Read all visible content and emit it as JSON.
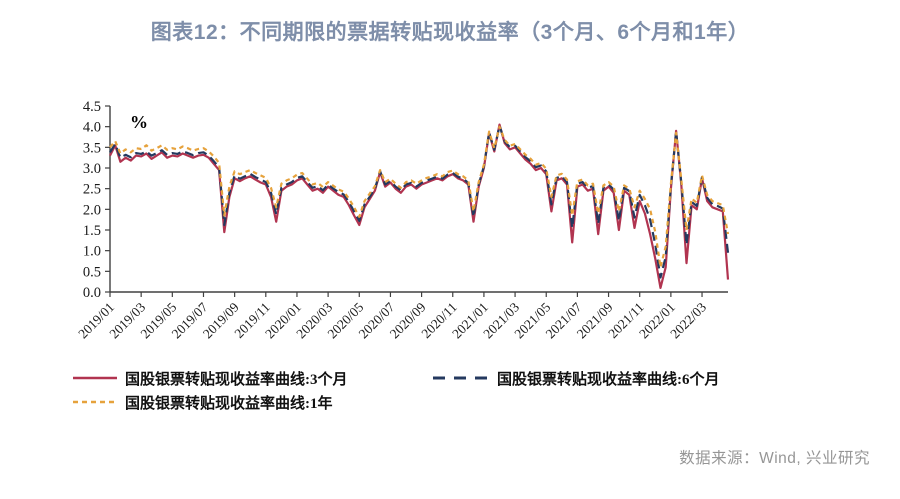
{
  "title": "图表12：不同期限的票据转贴现收益率（3个月、6个月和1年）",
  "source": "数据来源：Wind, 兴业研究",
  "colors": {
    "title": "#7e8ea9",
    "source": "#969696",
    "axis": "#404040",
    "tick_text": "#1a1a1a"
  },
  "chart_data": {
    "type": "line",
    "unit_label": "%",
    "grid": false,
    "legend_position": "bottom",
    "ylim": [
      0.0,
      4.5
    ],
    "ytick_step": 0.5,
    "points_per_month": 3,
    "x_tick_every_points": 6,
    "x_tick_labels": [
      "2019/01",
      "2019/03",
      "2019/05",
      "2019/07",
      "2019/09",
      "2019/11",
      "2020/01",
      "2020/03",
      "2020/05",
      "2020/07",
      "2020/09",
      "2020/11",
      "2021/01",
      "2021/03",
      "2021/05",
      "2021/07",
      "2021/09",
      "2021/11",
      "2022/01",
      "2022/03"
    ],
    "series": [
      {
        "name": "国股银票转贴现收益率曲线:3个月",
        "color": "#b13450",
        "dash": null,
        "values": [
          3.3,
          3.55,
          3.15,
          3.25,
          3.18,
          3.3,
          3.28,
          3.35,
          3.22,
          3.3,
          3.38,
          3.25,
          3.3,
          3.28,
          3.35,
          3.3,
          3.25,
          3.3,
          3.32,
          3.25,
          3.1,
          2.95,
          1.45,
          2.3,
          2.75,
          2.68,
          2.75,
          2.8,
          2.72,
          2.65,
          2.6,
          2.3,
          1.7,
          2.45,
          2.55,
          2.6,
          2.7,
          2.75,
          2.6,
          2.45,
          2.5,
          2.4,
          2.55,
          2.45,
          2.35,
          2.3,
          2.1,
          1.85,
          1.62,
          2.05,
          2.25,
          2.45,
          2.9,
          2.55,
          2.65,
          2.5,
          2.4,
          2.55,
          2.6,
          2.5,
          2.6,
          2.65,
          2.7,
          2.75,
          2.7,
          2.8,
          2.85,
          2.75,
          2.7,
          2.6,
          1.7,
          2.55,
          3.0,
          3.85,
          3.4,
          4.05,
          3.6,
          3.45,
          3.5,
          3.35,
          3.2,
          3.1,
          2.95,
          3.0,
          2.85,
          1.95,
          2.7,
          2.75,
          2.6,
          1.2,
          2.55,
          2.6,
          2.45,
          2.5,
          1.4,
          2.45,
          2.55,
          2.4,
          1.5,
          2.45,
          2.35,
          1.55,
          2.2,
          1.9,
          1.4,
          0.8,
          0.1,
          0.6,
          2.5,
          3.9,
          2.6,
          0.7,
          2.1,
          2.0,
          2.75,
          2.2,
          2.05,
          2.0,
          1.95,
          0.3
        ]
      },
      {
        "name": "国股银票转贴现收益率曲线:6个月",
        "color": "#24395f",
        "dash": "9 5",
        "values": [
          3.38,
          3.58,
          3.25,
          3.32,
          3.26,
          3.36,
          3.34,
          3.4,
          3.3,
          3.36,
          3.43,
          3.32,
          3.36,
          3.34,
          3.4,
          3.36,
          3.31,
          3.36,
          3.38,
          3.3,
          3.16,
          3.02,
          1.62,
          2.4,
          2.82,
          2.74,
          2.8,
          2.86,
          2.78,
          2.72,
          2.66,
          2.4,
          1.88,
          2.52,
          2.6,
          2.66,
          2.76,
          2.8,
          2.66,
          2.52,
          2.56,
          2.46,
          2.6,
          2.5,
          2.42,
          2.36,
          2.18,
          1.95,
          1.72,
          2.12,
          2.3,
          2.5,
          2.92,
          2.6,
          2.68,
          2.55,
          2.46,
          2.6,
          2.64,
          2.55,
          2.64,
          2.7,
          2.74,
          2.79,
          2.74,
          2.84,
          2.88,
          2.79,
          2.74,
          2.64,
          1.82,
          2.6,
          3.04,
          3.86,
          3.44,
          4.02,
          3.64,
          3.5,
          3.54,
          3.4,
          3.26,
          3.16,
          3.02,
          3.06,
          2.92,
          2.12,
          2.76,
          2.8,
          2.66,
          1.55,
          2.62,
          2.66,
          2.52,
          2.56,
          1.65,
          2.52,
          2.6,
          2.48,
          1.72,
          2.52,
          2.44,
          1.8,
          2.35,
          2.1,
          1.75,
          1.15,
          0.35,
          0.85,
          2.56,
          3.88,
          2.65,
          1.15,
          2.18,
          2.08,
          2.78,
          2.28,
          2.12,
          2.08,
          2.02,
          0.95
        ]
      },
      {
        "name": "国股银票转贴现收益率曲线:1年",
        "color": "#e6a23c",
        "dash": "4.5 3.8",
        "values": [
          3.5,
          3.65,
          3.35,
          3.45,
          3.38,
          3.48,
          3.46,
          3.55,
          3.42,
          3.48,
          3.55,
          3.44,
          3.48,
          3.45,
          3.52,
          3.48,
          3.42,
          3.46,
          3.48,
          3.4,
          3.28,
          3.12,
          1.85,
          2.55,
          2.92,
          2.85,
          2.9,
          2.95,
          2.88,
          2.82,
          2.76,
          2.52,
          2.05,
          2.62,
          2.7,
          2.75,
          2.84,
          2.88,
          2.74,
          2.6,
          2.64,
          2.54,
          2.66,
          2.57,
          2.48,
          2.43,
          2.26,
          2.05,
          1.82,
          2.2,
          2.38,
          2.56,
          2.95,
          2.66,
          2.74,
          2.62,
          2.52,
          2.66,
          2.7,
          2.62,
          2.7,
          2.76,
          2.8,
          2.85,
          2.8,
          2.9,
          2.94,
          2.85,
          2.8,
          2.7,
          1.95,
          2.66,
          3.08,
          3.88,
          3.48,
          4.0,
          3.68,
          3.54,
          3.58,
          3.45,
          3.32,
          3.22,
          3.08,
          3.12,
          2.98,
          2.3,
          2.82,
          2.86,
          2.72,
          1.85,
          2.68,
          2.72,
          2.58,
          2.62,
          1.9,
          2.58,
          2.66,
          2.55,
          1.95,
          2.58,
          2.5,
          2.05,
          2.45,
          2.25,
          2.0,
          1.45,
          0.6,
          1.1,
          2.62,
          3.85,
          2.72,
          1.5,
          2.26,
          2.16,
          2.82,
          2.35,
          2.2,
          2.15,
          2.1,
          1.4
        ]
      }
    ]
  }
}
